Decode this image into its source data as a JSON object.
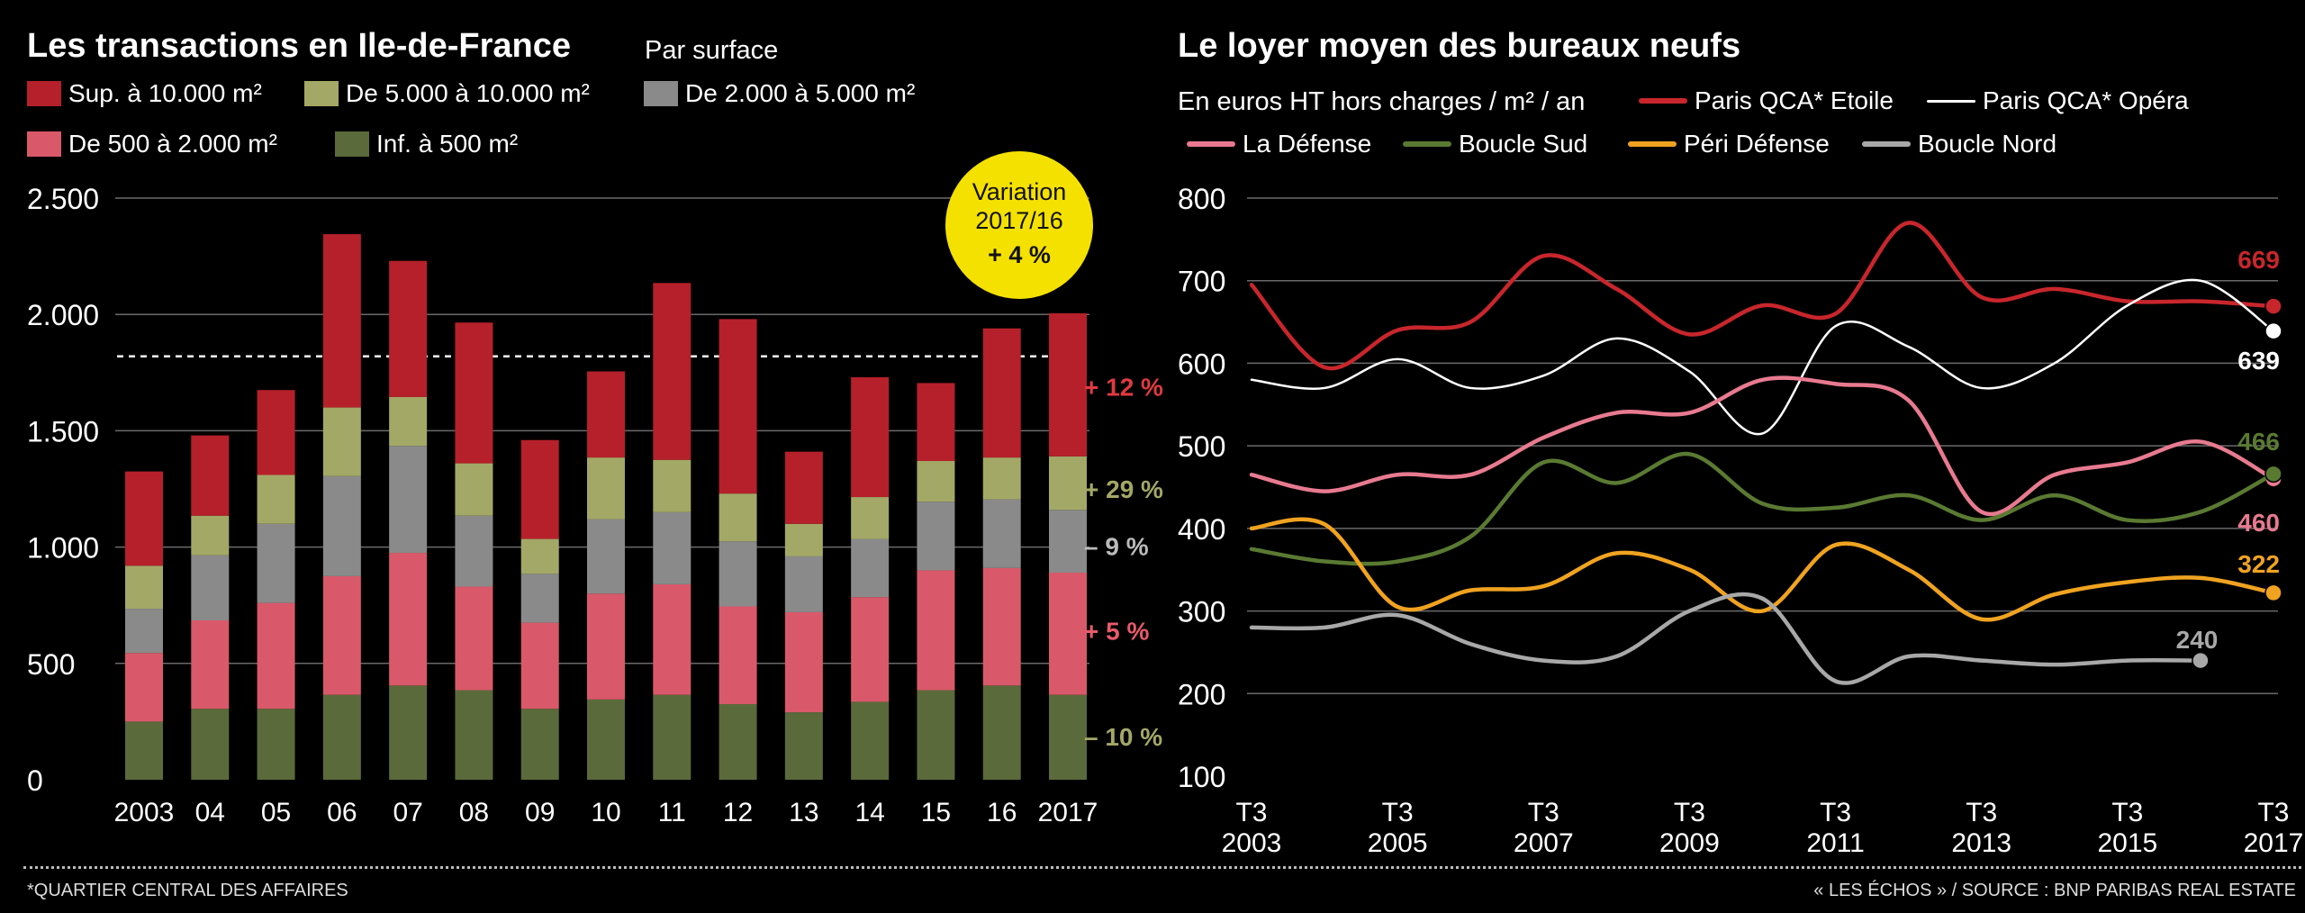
{
  "left_title": "Les transactions en Ile-de-France",
  "left_subtitle": "Par surface",
  "right_title": "Le loyer moyen des bureaux neufs",
  "right_subtitle": "En euros HT hors charges / m² / an",
  "footnote": "*QUARTIER CENTRAL DES AFFAIRES",
  "source": "« LES ÉCHOS » / SOURCE : BNP PARIBAS REAL ESTATE",
  "badge": {
    "line1": "Variation",
    "line2": "2017/16",
    "line3": "+ 4 %",
    "color": "#f5e100"
  },
  "chart_data": [
    {
      "type": "bar",
      "stacked": true,
      "categories": [
        "2003",
        "04",
        "05",
        "06",
        "07",
        "08",
        "09",
        "10",
        "11",
        "12",
        "13",
        "14",
        "15",
        "16",
        "2017"
      ],
      "ylim": [
        0,
        2500
      ],
      "yticks": [
        0,
        500,
        1000,
        1500,
        2000,
        2500
      ],
      "ytick_labels": [
        "0",
        "500",
        "1.000",
        "1.500",
        "2.000",
        "2.500"
      ],
      "reference_line": 1820,
      "series": [
        {
          "name": "Inf. à 500 m²",
          "color": "#5b6a3a",
          "values": [
            250,
            305,
            305,
            365,
            405,
            385,
            305,
            345,
            365,
            325,
            290,
            335,
            385,
            405,
            365
          ]
        },
        {
          "name": "De 500 à 2.000 m²",
          "color": "#d9596a",
          "values": [
            295,
            380,
            455,
            510,
            570,
            445,
            370,
            455,
            475,
            420,
            430,
            450,
            515,
            505,
            525
          ]
        },
        {
          "name": "De 2.000 à 5.000 m²",
          "color": "#8a8a8a",
          "values": [
            190,
            280,
            340,
            430,
            460,
            305,
            210,
            320,
            310,
            280,
            240,
            250,
            295,
            295,
            270
          ]
        },
        {
          "name": "De 5.000 à 10.000 m²",
          "color": "#a3a866",
          "values": [
            185,
            170,
            210,
            295,
            210,
            225,
            150,
            265,
            225,
            205,
            140,
            180,
            175,
            180,
            230
          ]
        },
        {
          "name": "Sup. à 10.000 m²",
          "color": "#b5202a",
          "values": [
            405,
            345,
            365,
            745,
            585,
            605,
            425,
            370,
            760,
            750,
            310,
            515,
            335,
            555,
            615
          ]
        }
      ],
      "annotations": [
        {
          "text": "+ 12 %",
          "color": "#e03a40",
          "y": 1690
        },
        {
          "text": "+ 29 %",
          "color": "#a3a866",
          "y": 1250
        },
        {
          "text": "– 9 %",
          "color": "#bbbbbb",
          "y": 1005
        },
        {
          "text": "+ 5 %",
          "color": "#e85a6a",
          "y": 640
        },
        {
          "text": "– 10 %",
          "color": "#a3a866",
          "y": 185
        }
      ]
    },
    {
      "type": "line",
      "x": [
        2003,
        2004,
        2005,
        2006,
        2007,
        2008,
        2009,
        2010,
        2011,
        2012,
        2013,
        2014,
        2015,
        2016,
        2017
      ],
      "xtick_values": [
        2003,
        2005,
        2007,
        2009,
        2011,
        2013,
        2015,
        2017
      ],
      "xtick_line1": "T3",
      "xtick_labels": [
        "2003",
        "2005",
        "2007",
        "2009",
        "2011",
        "2013",
        "2015",
        "2017"
      ],
      "ylim": [
        100,
        800
      ],
      "yticks": [
        100,
        200,
        300,
        400,
        500,
        600,
        700,
        800
      ],
      "series": [
        {
          "name": "Paris QCA* Etoile",
          "color": "#c8262c",
          "values": [
            695,
            595,
            640,
            650,
            730,
            690,
            635,
            670,
            660,
            770,
            680,
            690,
            675,
            675,
            669
          ],
          "end_label": "669"
        },
        {
          "name": "Paris QCA* Opéra",
          "color": "#ffffff",
          "values": [
            580,
            570,
            605,
            570,
            585,
            630,
            590,
            515,
            645,
            620,
            570,
            600,
            670,
            700,
            639
          ],
          "end_label": "639"
        },
        {
          "name": "La Défense",
          "color": "#e87a90",
          "values": [
            465,
            445,
            465,
            465,
            510,
            540,
            540,
            580,
            575,
            555,
            420,
            465,
            480,
            505,
            460
          ],
          "end_label": "460"
        },
        {
          "name": "Boucle Sud",
          "color": "#5a7a32",
          "values": [
            375,
            360,
            360,
            390,
            480,
            455,
            490,
            430,
            425,
            440,
            410,
            440,
            410,
            420,
            466
          ],
          "end_label": "466"
        },
        {
          "name": "Péri Défense",
          "color": "#f0a320",
          "values": [
            400,
            405,
            305,
            325,
            330,
            370,
            350,
            300,
            380,
            350,
            290,
            320,
            335,
            340,
            322
          ],
          "end_label": "322"
        },
        {
          "name": "Boucle Nord",
          "color": "#a8a8a8",
          "values": [
            280,
            280,
            295,
            260,
            240,
            245,
            300,
            315,
            215,
            245,
            240,
            235,
            240,
            240,
            null
          ],
          "end_label": "240"
        }
      ]
    }
  ]
}
